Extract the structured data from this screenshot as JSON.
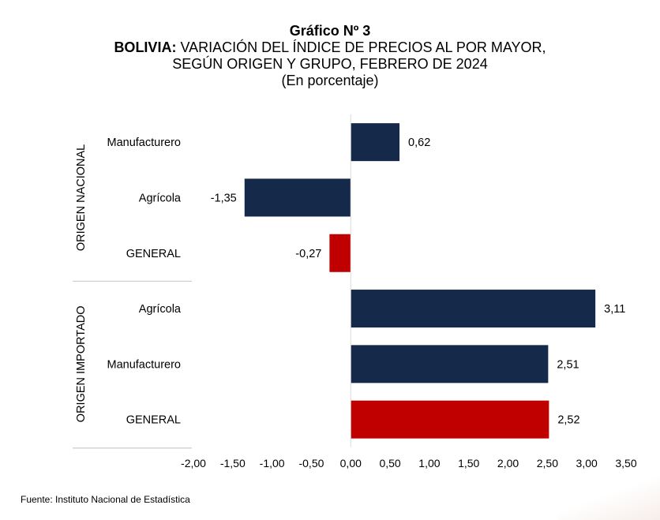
{
  "title": {
    "line1": "Gráfico Nº 3",
    "line2_bold": "BOLIVIA:",
    "line2_rest": " VARIACIÓN DEL ÍNDICE DE PRECIOS AL POR MAYOR,",
    "line3": "SEGÚN ORIGEN Y GRUPO, FEBRERO DE 2024",
    "line4": "(En porcentaje)"
  },
  "source": "Fuente: Instituto Nacional de Estadística",
  "chart_data": {
    "type": "bar",
    "orientation": "horizontal",
    "groups": [
      {
        "label": "ORIGEN NACIONAL",
        "bars": [
          {
            "category": "Manufacturero",
            "value": 0.62,
            "label": "0,62",
            "color": "#15294a"
          },
          {
            "category": "Agrícola",
            "value": -1.35,
            "label": "-1,35",
            "color": "#15294a"
          },
          {
            "category": "GENERAL",
            "value": -0.27,
            "label": "-0,27",
            "color": "#c00000"
          }
        ]
      },
      {
        "label": "ORIGEN IMPORTADO",
        "bars": [
          {
            "category": "Agrícola",
            "value": 3.11,
            "label": "3,11",
            "color": "#15294a"
          },
          {
            "category": "Manufacturero",
            "value": 2.51,
            "label": "2,51",
            "color": "#15294a"
          },
          {
            "category": "GENERAL",
            "value": 2.52,
            "label": "2,52",
            "color": "#c00000"
          }
        ]
      }
    ],
    "xlim": [
      -2.0,
      3.5
    ],
    "xticks": [
      -2.0,
      -1.5,
      -1.0,
      -0.5,
      0.0,
      0.5,
      1.0,
      1.5,
      2.0,
      2.5,
      3.0,
      3.5
    ],
    "xtick_labels": [
      "-2,00",
      "-1,50",
      "-1,00",
      "-0,50",
      "0,00",
      "0,50",
      "1,00",
      "1,50",
      "2,00",
      "2,50",
      "3,00",
      "3,50"
    ],
    "grid": false,
    "legend": "none"
  }
}
